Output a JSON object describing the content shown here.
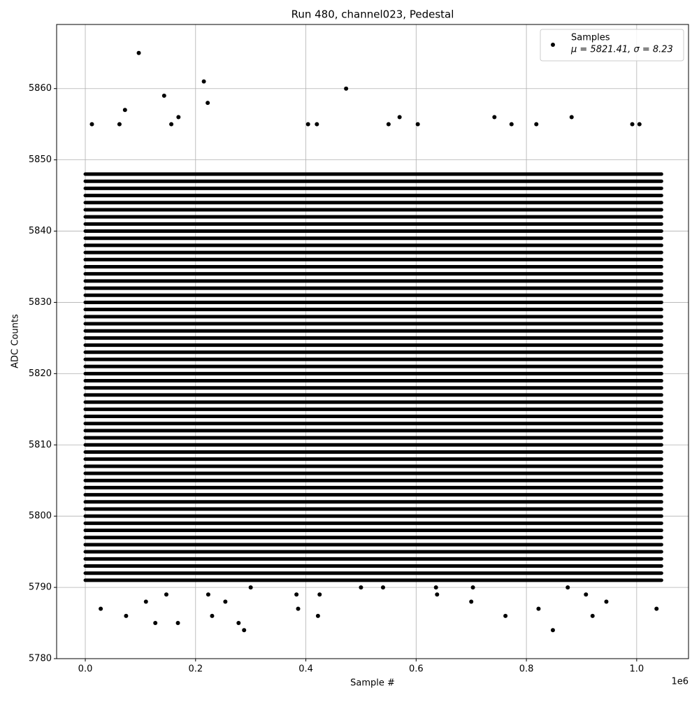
{
  "chart_data": {
    "type": "scatter",
    "title": "Run 480, channel023, Pedestal",
    "x_label": "Sample #",
    "y_label": "ADC Counts",
    "x_offset_label": "1e6",
    "xlim": [
      -52000,
      1094000
    ],
    "ylim": [
      5780,
      5869
    ],
    "xticks": [
      {
        "value": 0,
        "label": "0.0"
      },
      {
        "value": 200000,
        "label": "0.2"
      },
      {
        "value": 400000,
        "label": "0.4"
      },
      {
        "value": 600000,
        "label": "0.6"
      },
      {
        "value": 800000,
        "label": "0.8"
      },
      {
        "value": 1000000,
        "label": "1.0"
      }
    ],
    "yticks": [
      5780,
      5790,
      5800,
      5810,
      5820,
      5830,
      5840,
      5850,
      5860
    ],
    "grid": true,
    "legend": "upper right",
    "series": [
      {
        "name": "Samples",
        "stats": "μ = 5821.41, σ = 8.23",
        "color": "#000000",
        "x": [
          97000,
          215000,
          222000,
          143000,
          72000,
          473000,
          28000,
          74000,
          110000,
          127000,
          168000,
          147000,
          223000,
          230000,
          254000,
          278000,
          288000,
          383000,
          386000,
          422000,
          425000,
          700000,
          762000,
          822000,
          848000,
          908000,
          920000,
          945000,
          1036000,
          570000,
          742000,
          882000,
          169000,
          62000,
          603000,
          773000,
          818000,
          992000,
          1005000,
          12000,
          156000,
          404000,
          420000,
          550000,
          636000,
          300000,
          500000,
          540000,
          638000,
          703000,
          875000
        ],
        "values": [
          5865,
          5861,
          5858,
          5859,
          5857,
          5860,
          5787,
          5786,
          5788,
          5785,
          5785,
          5789,
          5789,
          5786,
          5788,
          5785,
          5784,
          5789,
          5787,
          5786,
          5789,
          5788,
          5786,
          5787,
          5784,
          5789,
          5786,
          5788,
          5787,
          5856,
          5856,
          5856,
          5856,
          5855,
          5855,
          5855,
          5855,
          5855,
          5855,
          5855,
          5855,
          5855,
          5855,
          5855,
          5790,
          5790,
          5790,
          5790,
          5789,
          5790,
          5790
        ],
        "band": {
          "x": [
            0,
            1045000
          ],
          "levels": [
            5791,
            5792,
            5793,
            5794,
            5795,
            5796,
            5797,
            5798,
            5799,
            5800,
            5801,
            5802,
            5803,
            5804,
            5805,
            5806,
            5807,
            5808,
            5809,
            5810,
            5811,
            5812,
            5813,
            5814,
            5815,
            5816,
            5817,
            5818,
            5819,
            5820,
            5821,
            5822,
            5823,
            5824,
            5825,
            5826,
            5827,
            5828,
            5829,
            5830,
            5831,
            5832,
            5833,
            5834,
            5835,
            5836,
            5837,
            5838,
            5839,
            5840,
            5841,
            5842,
            5843,
            5844,
            5845,
            5846,
            5847,
            5848
          ]
        }
      }
    ]
  }
}
